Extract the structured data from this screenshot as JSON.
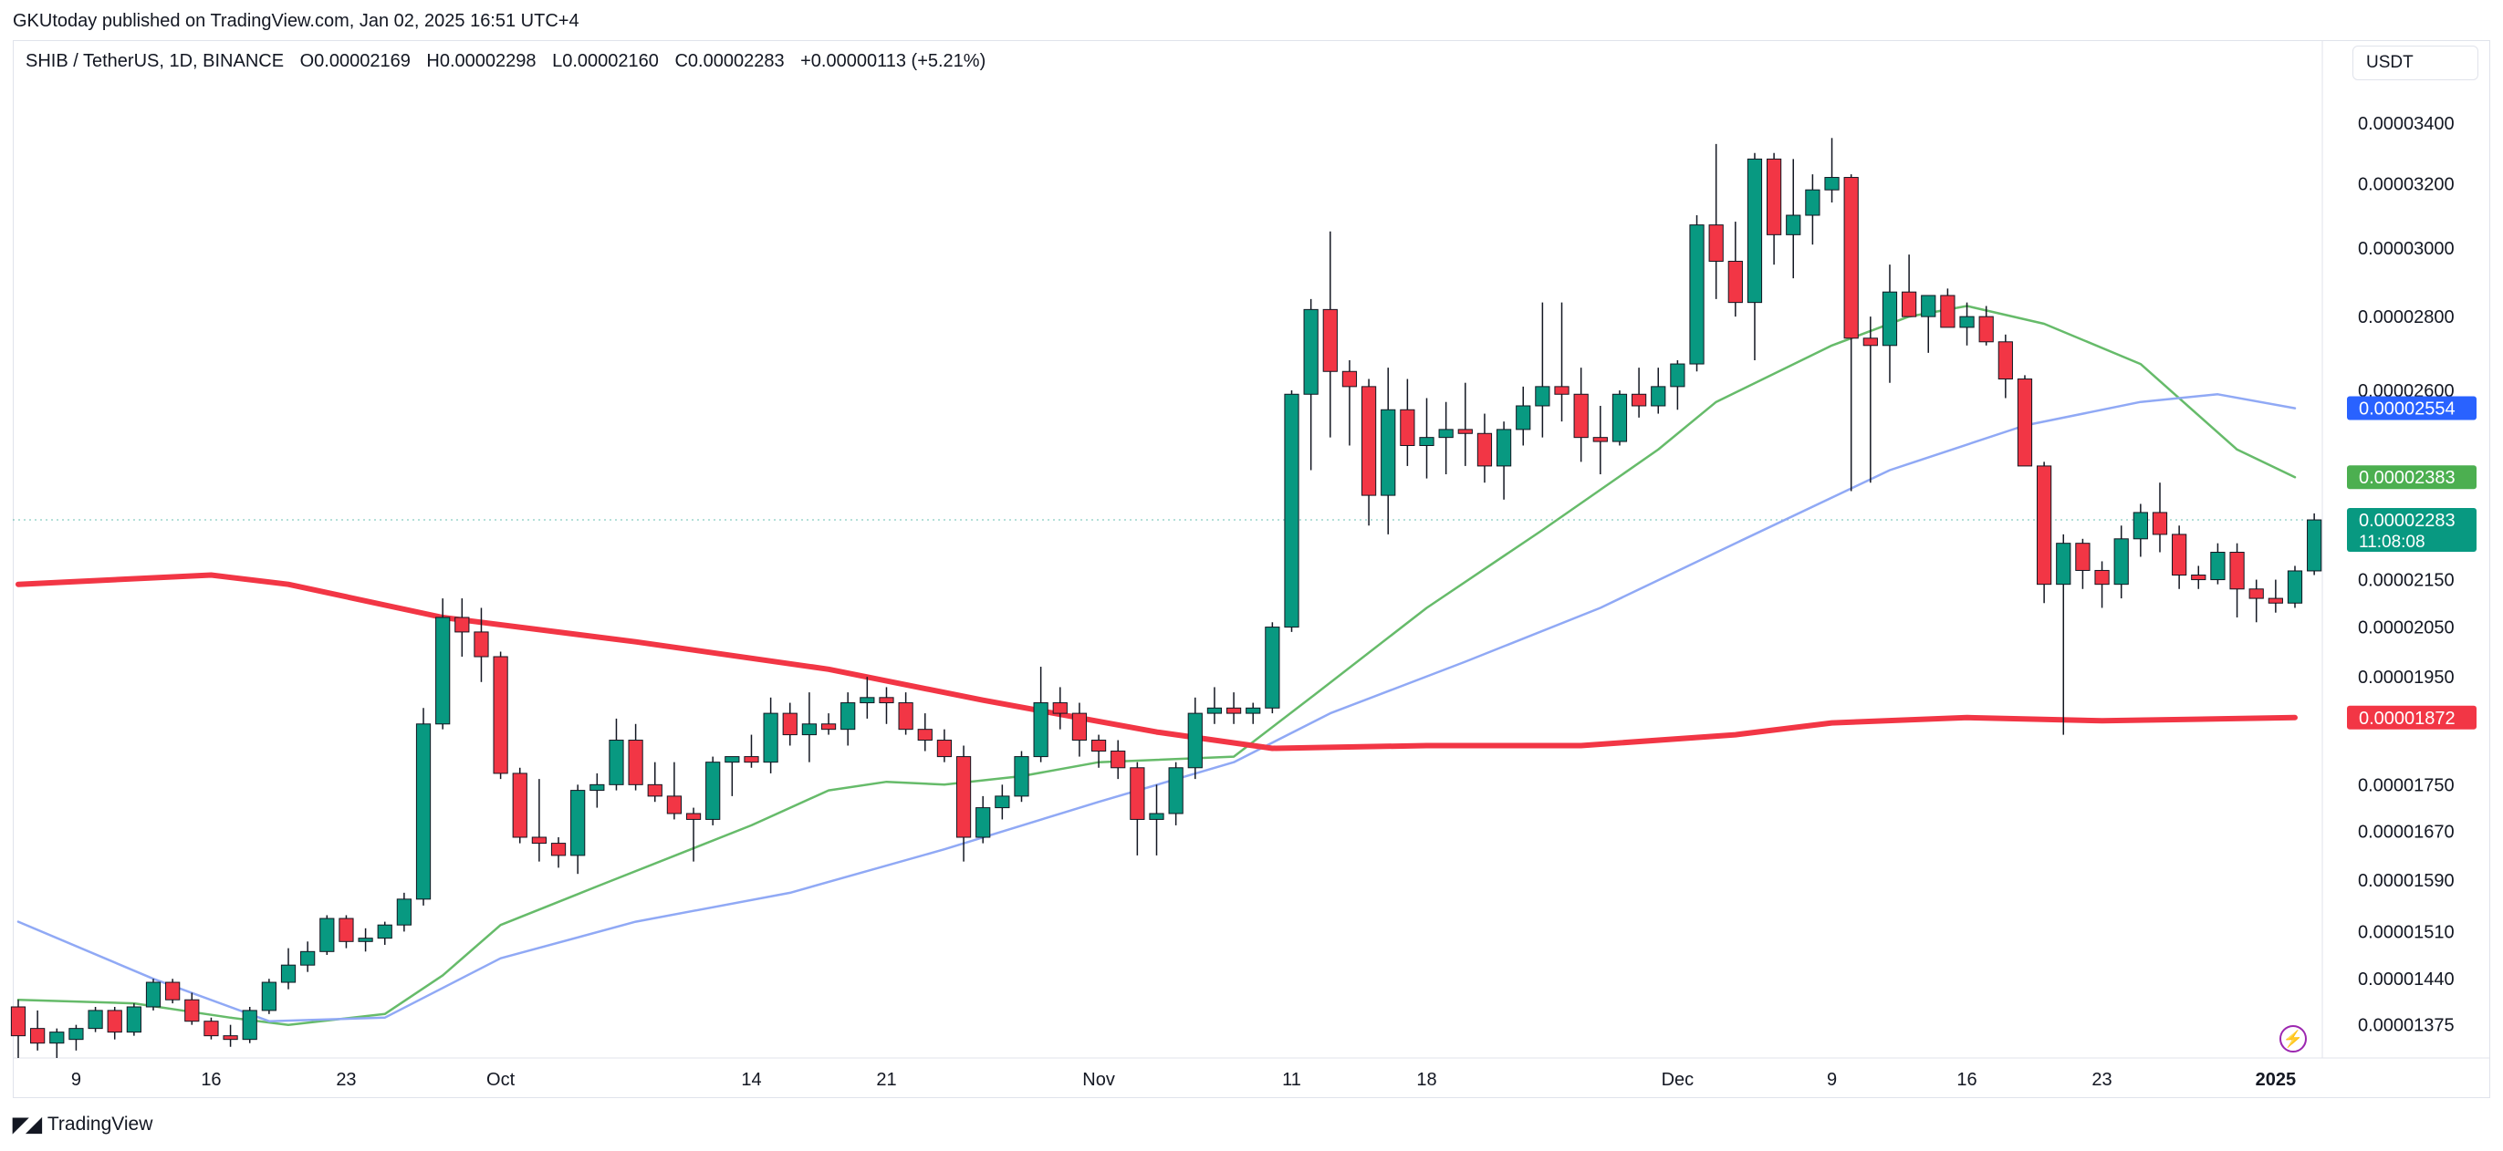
{
  "header": {
    "published": "GKUtoday published on TradingView.com, Jan 02, 2025 16:51 UTC+4"
  },
  "legend": {
    "symbol": "SHIB / TetherUS, 1D, BINANCE",
    "open": "O0.00002169",
    "high": "H0.00002298",
    "low": "L0.00002160",
    "close": "C0.00002283",
    "change": "+0.00000113 (+5.21%)"
  },
  "currency": "USDT",
  "footer": {
    "brand": "TradingView",
    "logo_icon": "tradingview-logo-icon"
  },
  "chart_data": {
    "type": "candlestick",
    "x_ticks": [
      "9",
      "16",
      "23",
      "Oct",
      "14",
      "21",
      "Nov",
      "11",
      "18",
      "Dec",
      "9",
      "16",
      "23",
      "2025"
    ],
    "y_ticks": [
      3.4e-05,
      3.2e-05,
      3e-05,
      2.8e-05,
      2.6e-05,
      2.15e-05,
      2.05e-05,
      1.95e-05,
      1.75e-05,
      1.67e-05,
      1.59e-05,
      1.51e-05,
      1.44e-05,
      1.375e-05
    ],
    "y_tick_labels": [
      "0.00003400",
      "0.00003200",
      "0.00003000",
      "0.00002800",
      "0.00002600",
      "0.00002150",
      "0.00002050",
      "0.00001950",
      "0.00001750",
      "0.00001670",
      "0.00001590",
      "0.00001510",
      "0.00001440",
      "0.00001375"
    ],
    "y_scale": "log",
    "y_range": [
      1.33e-05,
      3.55e-05
    ],
    "price_tags": [
      {
        "label": "0.00002554",
        "value": 2.554e-05,
        "color": "#2962ff"
      },
      {
        "label": "0.00002383",
        "value": 2.383e-05,
        "color": "#4caf50"
      },
      {
        "label": "0.00001872",
        "value": 1.872e-05,
        "color": "#f23645"
      }
    ],
    "last_price": {
      "label": "0.00002283",
      "value": 2.283e-05,
      "countdown": "11:08:08",
      "color": "#089981"
    },
    "colors": {
      "up": "#089981",
      "down": "#f23645",
      "ma_green": "#66bb6a",
      "ma_blue": "#90a9f5",
      "ma_red": "#f23645"
    },
    "series": [
      {
        "kind": "ohlc",
        "start": "2024-09-06",
        "candles": [
          [
            1400,
            1410,
            1330,
            1360
          ],
          [
            1370,
            1395,
            1340,
            1350
          ],
          [
            1350,
            1370,
            1330,
            1365
          ],
          [
            1355,
            1375,
            1340,
            1370
          ],
          [
            1370,
            1400,
            1365,
            1395
          ],
          [
            1395,
            1400,
            1355,
            1365
          ],
          [
            1365,
            1405,
            1360,
            1400
          ],
          [
            1400,
            1440,
            1395,
            1435
          ],
          [
            1435,
            1440,
            1405,
            1410
          ],
          [
            1410,
            1420,
            1375,
            1380
          ],
          [
            1380,
            1385,
            1355,
            1360
          ],
          [
            1360,
            1375,
            1345,
            1355
          ],
          [
            1355,
            1400,
            1350,
            1395
          ],
          [
            1395,
            1440,
            1390,
            1435
          ],
          [
            1435,
            1485,
            1425,
            1460
          ],
          [
            1460,
            1495,
            1450,
            1480
          ],
          [
            1480,
            1535,
            1475,
            1530
          ],
          [
            1530,
            1535,
            1485,
            1495
          ],
          [
            1495,
            1515,
            1480,
            1500
          ],
          [
            1500,
            1525,
            1490,
            1520
          ],
          [
            1520,
            1570,
            1510,
            1560
          ],
          [
            1560,
            1890,
            1550,
            1860
          ],
          [
            1860,
            2110,
            1850,
            2070
          ],
          [
            2070,
            2110,
            1990,
            2040
          ],
          [
            2040,
            2090,
            1940,
            1990
          ],
          [
            1990,
            2000,
            1760,
            1770
          ],
          [
            1770,
            1780,
            1650,
            1660
          ],
          [
            1660,
            1760,
            1620,
            1650
          ],
          [
            1650,
            1660,
            1610,
            1630
          ],
          [
            1630,
            1750,
            1600,
            1740
          ],
          [
            1740,
            1770,
            1710,
            1750
          ],
          [
            1750,
            1870,
            1740,
            1830
          ],
          [
            1830,
            1860,
            1740,
            1750
          ],
          [
            1750,
            1790,
            1720,
            1730
          ],
          [
            1730,
            1790,
            1690,
            1700
          ],
          [
            1700,
            1710,
            1620,
            1690
          ],
          [
            1690,
            1800,
            1680,
            1790
          ],
          [
            1790,
            1800,
            1730,
            1800
          ],
          [
            1800,
            1840,
            1780,
            1790
          ],
          [
            1790,
            1910,
            1770,
            1880
          ],
          [
            1880,
            1900,
            1820,
            1840
          ],
          [
            1840,
            1920,
            1790,
            1860
          ],
          [
            1860,
            1880,
            1840,
            1850
          ],
          [
            1850,
            1920,
            1820,
            1900
          ],
          [
            1900,
            1950,
            1870,
            1910
          ],
          [
            1910,
            1930,
            1860,
            1900
          ],
          [
            1900,
            1920,
            1840,
            1850
          ],
          [
            1850,
            1880,
            1810,
            1830
          ],
          [
            1830,
            1850,
            1790,
            1800
          ],
          [
            1800,
            1820,
            1620,
            1660
          ],
          [
            1660,
            1730,
            1650,
            1710
          ],
          [
            1710,
            1750,
            1690,
            1730
          ],
          [
            1730,
            1810,
            1720,
            1800
          ],
          [
            1800,
            1970,
            1790,
            1900
          ],
          [
            1900,
            1930,
            1850,
            1880
          ],
          [
            1880,
            1900,
            1800,
            1830
          ],
          [
            1830,
            1840,
            1780,
            1810
          ],
          [
            1810,
            1830,
            1760,
            1780
          ],
          [
            1780,
            1790,
            1630,
            1690
          ],
          [
            1690,
            1750,
            1630,
            1700
          ],
          [
            1700,
            1790,
            1680,
            1780
          ],
          [
            1780,
            1910,
            1760,
            1880
          ],
          [
            1880,
            1930,
            1860,
            1890
          ],
          [
            1890,
            1920,
            1860,
            1880
          ],
          [
            1880,
            1900,
            1860,
            1890
          ],
          [
            1890,
            2060,
            1880,
            2050
          ],
          [
            2050,
            2600,
            2040,
            2590
          ],
          [
            2590,
            2850,
            2400,
            2820
          ],
          [
            2820,
            3050,
            2480,
            2650
          ],
          [
            2650,
            2680,
            2460,
            2610
          ],
          [
            2610,
            2630,
            2270,
            2340
          ],
          [
            2340,
            2660,
            2250,
            2550
          ],
          [
            2550,
            2630,
            2410,
            2460
          ],
          [
            2460,
            2580,
            2380,
            2480
          ],
          [
            2480,
            2570,
            2390,
            2500
          ],
          [
            2500,
            2620,
            2410,
            2490
          ],
          [
            2490,
            2540,
            2370,
            2410
          ],
          [
            2410,
            2520,
            2330,
            2500
          ],
          [
            2500,
            2610,
            2460,
            2560
          ],
          [
            2560,
            2840,
            2480,
            2610
          ],
          [
            2610,
            2840,
            2520,
            2590
          ],
          [
            2590,
            2660,
            2420,
            2480
          ],
          [
            2480,
            2560,
            2390,
            2470
          ],
          [
            2470,
            2600,
            2460,
            2590
          ],
          [
            2590,
            2660,
            2530,
            2560
          ],
          [
            2560,
            2660,
            2540,
            2610
          ],
          [
            2610,
            2680,
            2550,
            2670
          ],
          [
            2670,
            3100,
            2650,
            3070
          ],
          [
            3070,
            3330,
            2850,
            2960
          ],
          [
            2960,
            3080,
            2800,
            2840
          ],
          [
            2840,
            3300,
            2680,
            3280
          ],
          [
            3280,
            3300,
            2950,
            3040
          ],
          [
            3040,
            3280,
            2910,
            3100
          ],
          [
            3100,
            3230,
            3010,
            3180
          ],
          [
            3180,
            3350,
            3140,
            3220
          ],
          [
            3220,
            3230,
            2350,
            2740
          ],
          [
            2740,
            2800,
            2370,
            2720
          ],
          [
            2720,
            2950,
            2620,
            2870
          ],
          [
            2870,
            2980,
            2810,
            2800
          ],
          [
            2800,
            2860,
            2700,
            2860
          ],
          [
            2860,
            2880,
            2780,
            2770
          ],
          [
            2770,
            2840,
            2720,
            2800
          ],
          [
            2800,
            2830,
            2720,
            2730
          ],
          [
            2730,
            2750,
            2580,
            2630
          ],
          [
            2630,
            2640,
            2410,
            2410
          ],
          [
            2410,
            2420,
            2100,
            2140
          ],
          [
            2140,
            2250,
            1840,
            2230
          ],
          [
            2230,
            2240,
            2130,
            2170
          ],
          [
            2170,
            2190,
            2090,
            2140
          ],
          [
            2140,
            2270,
            2110,
            2240
          ],
          [
            2240,
            2320,
            2200,
            2300
          ],
          [
            2300,
            2370,
            2210,
            2250
          ],
          [
            2250,
            2270,
            2130,
            2160
          ],
          [
            2160,
            2180,
            2130,
            2150
          ],
          [
            2150,
            2230,
            2140,
            2210
          ],
          [
            2210,
            2230,
            2070,
            2130
          ],
          [
            2130,
            2150,
            2060,
            2110
          ],
          [
            2110,
            2150,
            2080,
            2100
          ],
          [
            2100,
            2180,
            2090,
            2169
          ],
          [
            2169,
            2298,
            2160,
            2283
          ]
        ]
      },
      {
        "kind": "line",
        "color": "#66bb6a",
        "points": [
          [
            "2024-09-06",
            1410
          ],
          [
            "2024-09-12",
            1405
          ],
          [
            "2024-09-17",
            1385
          ],
          [
            "2024-09-20",
            1375
          ],
          [
            "2024-09-25",
            1390
          ],
          [
            "2024-09-28",
            1445
          ],
          [
            "2024-10-01",
            1520
          ],
          [
            "2024-10-06",
            1580
          ],
          [
            "2024-10-14",
            1680
          ],
          [
            "2024-10-18",
            1740
          ],
          [
            "2024-10-21",
            1755
          ],
          [
            "2024-10-24",
            1750
          ],
          [
            "2024-10-28",
            1765
          ],
          [
            "2024-11-01",
            1790
          ],
          [
            "2024-11-08",
            1800
          ],
          [
            "2024-11-12",
            1910
          ],
          [
            "2024-11-18",
            2090
          ],
          [
            "2024-11-24",
            2260
          ],
          [
            "2024-11-30",
            2450
          ],
          [
            "2024-12-03",
            2570
          ],
          [
            "2024-12-09",
            2720
          ],
          [
            "2024-12-13",
            2800
          ],
          [
            "2024-12-16",
            2830
          ],
          [
            "2024-12-20",
            2780
          ],
          [
            "2024-12-25",
            2670
          ],
          [
            "2024-12-30",
            2450
          ],
          [
            "2025-01-02",
            2383
          ]
        ]
      },
      {
        "kind": "line",
        "color": "#90a9f5",
        "points": [
          [
            "2024-09-06",
            1525
          ],
          [
            "2024-09-13",
            1440
          ],
          [
            "2024-09-19",
            1380
          ],
          [
            "2024-09-25",
            1385
          ],
          [
            "2024-10-01",
            1470
          ],
          [
            "2024-10-08",
            1525
          ],
          [
            "2024-10-16",
            1570
          ],
          [
            "2024-10-24",
            1640
          ],
          [
            "2024-11-01",
            1720
          ],
          [
            "2024-11-08",
            1790
          ],
          [
            "2024-11-13",
            1880
          ],
          [
            "2024-11-20",
            1980
          ],
          [
            "2024-11-27",
            2090
          ],
          [
            "2024-12-04",
            2230
          ],
          [
            "2024-12-12",
            2400
          ],
          [
            "2024-12-19",
            2510
          ],
          [
            "2024-12-25",
            2570
          ],
          [
            "2024-12-29",
            2590
          ],
          [
            "2025-01-02",
            2554
          ]
        ]
      },
      {
        "kind": "line",
        "color": "#f23645",
        "points": [
          [
            "2024-09-06",
            2140
          ],
          [
            "2024-09-16",
            2160
          ],
          [
            "2024-09-20",
            2140
          ],
          [
            "2024-09-28",
            2070
          ],
          [
            "2024-10-08",
            2020
          ],
          [
            "2024-10-18",
            1965
          ],
          [
            "2024-10-26",
            1905
          ],
          [
            "2024-11-04",
            1845
          ],
          [
            "2024-11-10",
            1815
          ],
          [
            "2024-11-18",
            1820
          ],
          [
            "2024-11-26",
            1820
          ],
          [
            "2024-12-04",
            1840
          ],
          [
            "2024-12-09",
            1862
          ],
          [
            "2024-12-16",
            1872
          ],
          [
            "2024-12-23",
            1866
          ],
          [
            "2025-01-02",
            1872
          ]
        ]
      }
    ],
    "value_unit_note": "candle and line values are in units of 1e-8 USDT (e.g. 2283 = 0.00002283)"
  }
}
